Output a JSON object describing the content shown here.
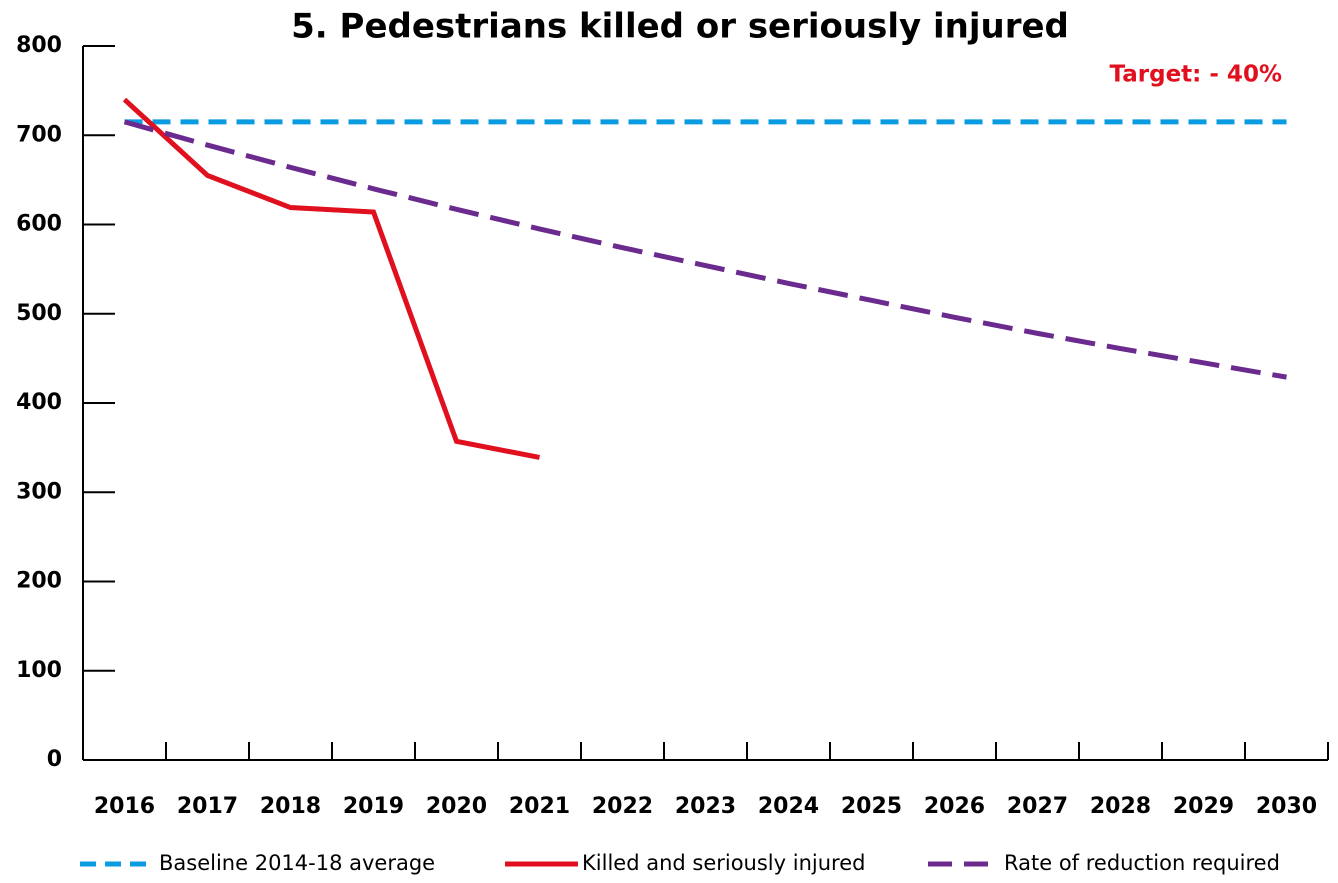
{
  "chart_data": {
    "type": "line",
    "title": "5. Pedestrians killed or seriously injured",
    "annotation": "Target: - 40%",
    "annotation_color": "#e0101e",
    "categories": [
      "2016",
      "2017",
      "2018",
      "2019",
      "2020",
      "2021",
      "2022",
      "2023",
      "2024",
      "2025",
      "2026",
      "2027",
      "2028",
      "2029",
      "2030"
    ],
    "series": [
      {
        "name": "Baseline 2014-18 average",
        "color": "#0a9be0",
        "linestyle": "dashed",
        "values": [
          715,
          715,
          715,
          715,
          715,
          715,
          715,
          715,
          715,
          715,
          715,
          715,
          715,
          715,
          715
        ]
      },
      {
        "name": "Killed and seriously injured",
        "color": "#e0101e",
        "linestyle": "solid",
        "values": [
          740,
          655,
          619,
          614,
          357,
          339,
          null,
          null,
          null,
          null,
          null,
          null,
          null,
          null,
          null
        ]
      },
      {
        "name": "Rate of reduction required",
        "color": "#6a2a8e",
        "linestyle": "dashed",
        "values": [
          715,
          689,
          664,
          640,
          617,
          595,
          574,
          554,
          534,
          515,
          496,
          478,
          461,
          445,
          429
        ]
      }
    ],
    "ylim": [
      0,
      800
    ],
    "yticks": [
      0,
      100,
      200,
      300,
      400,
      500,
      600,
      700,
      800
    ]
  }
}
